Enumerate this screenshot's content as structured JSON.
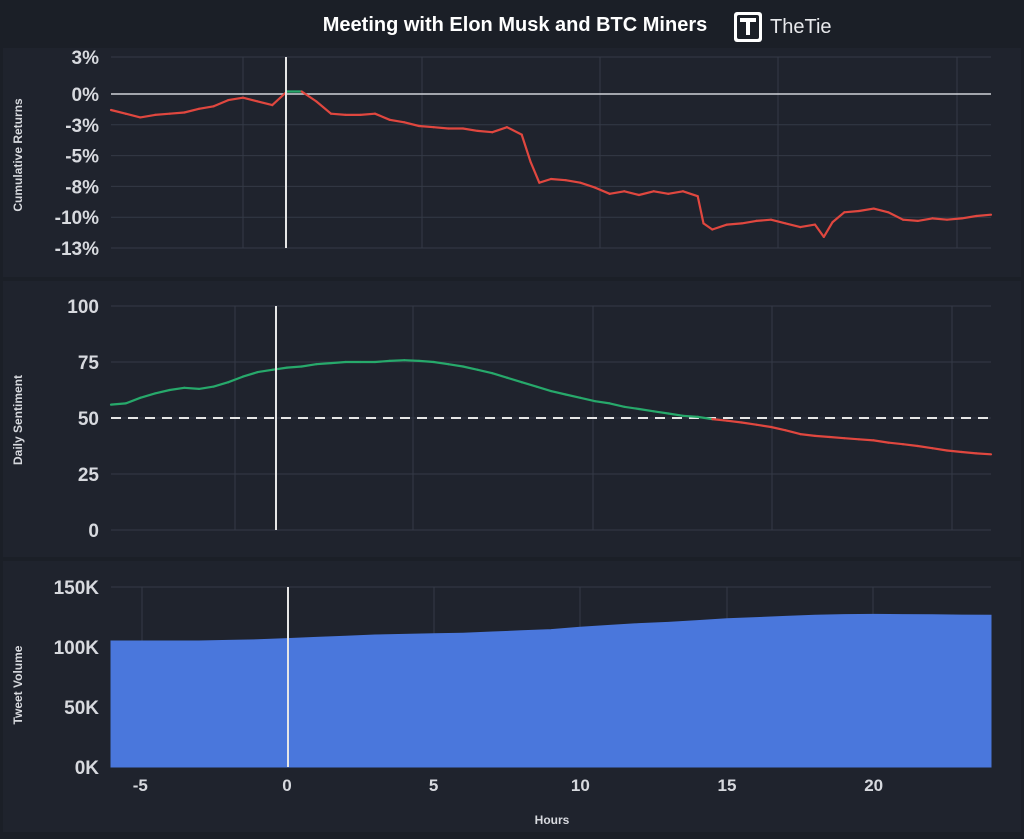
{
  "header": {
    "title": "Meeting with Elon Musk and BTC Miners",
    "brand": "TheTie"
  },
  "colors": {
    "background": "#1b1f27",
    "panel": "#1f232d",
    "grid": "#343a46",
    "text": "#d7d9de",
    "green": "#27a96b",
    "red": "#e0473f",
    "blue": "#4a77dc",
    "white": "#e6e6e6"
  },
  "chart_data": [
    {
      "type": "line",
      "ylabel": "Cumulative Returns",
      "ylim": [
        -12.5,
        3
      ],
      "xlim": [
        -6,
        24
      ],
      "yticks": [
        3,
        0,
        -2.5,
        -5,
        -7.5,
        -10,
        -12.5
      ],
      "ytick_labels": [
        "3%",
        "0%",
        "-3%",
        "-5%",
        "-8%",
        "-10%",
        "-13%"
      ],
      "event_x": 0,
      "positive_color": "#27a96b",
      "negative_color": "#e0473f",
      "series": [
        {
          "x": [
            -6,
            -5.5,
            -5,
            -4.5,
            -4,
            -3.5,
            -3,
            -2.5,
            -2,
            -1.5,
            -1,
            -0.5,
            0,
            0.5,
            1,
            1.5,
            2,
            2.5,
            3,
            3.5,
            4,
            4.5,
            5,
            5.5,
            6,
            6.5,
            7,
            7.5,
            8,
            8.3,
            8.6,
            9,
            9.5,
            10,
            10.5,
            11,
            11.5,
            12,
            12.5,
            13,
            13.5,
            14,
            14.2,
            14.5,
            15,
            15.5,
            16,
            16.5,
            17,
            17.5,
            18,
            18.3,
            18.6,
            19,
            19.5,
            20,
            20.5,
            21,
            21.5,
            22,
            22.5,
            23,
            23.5,
            24
          ],
          "y": [
            -1.3,
            -1.6,
            -1.9,
            -1.7,
            -1.6,
            -1.5,
            -1.2,
            -1.0,
            -0.5,
            -0.3,
            -0.6,
            -0.9,
            0.2,
            0.2,
            -0.6,
            -1.6,
            -1.7,
            -1.7,
            -1.6,
            -2.1,
            -2.3,
            -2.6,
            -2.7,
            -2.8,
            -2.8,
            -3.0,
            -3.1,
            -2.7,
            -3.3,
            -5.5,
            -7.2,
            -6.9,
            -7.0,
            -7.2,
            -7.6,
            -8.1,
            -7.9,
            -8.2,
            -7.9,
            -8.1,
            -7.9,
            -8.3,
            -10.5,
            -11.0,
            -10.6,
            -10.5,
            -10.3,
            -10.2,
            -10.5,
            -10.8,
            -10.6,
            -11.6,
            -10.4,
            -9.6,
            -9.5,
            -9.3,
            -9.6,
            -10.2,
            -10.3,
            -10.1,
            -10.2,
            -10.1,
            -9.9,
            -9.8
          ]
        }
      ]
    },
    {
      "type": "line",
      "ylabel": "Daily Sentiment",
      "ylim": [
        0,
        100
      ],
      "xlim": [
        -6,
        24
      ],
      "yticks": [
        100,
        75,
        50,
        25,
        0
      ],
      "ytick_labels": [
        "100",
        "75",
        "50",
        "25",
        "0"
      ],
      "threshold": 50,
      "event_x": 0,
      "positive_color": "#27a96b",
      "negative_color": "#e0473f",
      "series": [
        {
          "x": [
            -6,
            -5.5,
            -5,
            -4.5,
            -4,
            -3.5,
            -3,
            -2.5,
            -2,
            -1.5,
            -1,
            -0.5,
            0,
            0.5,
            1,
            1.5,
            2,
            2.5,
            3,
            3.5,
            4,
            4.5,
            5,
            5.5,
            6,
            6.5,
            7,
            7.5,
            8,
            8.5,
            9,
            9.5,
            10,
            10.5,
            11,
            11.5,
            12,
            12.5,
            13,
            13.5,
            14,
            14.5,
            15,
            15.5,
            16,
            16.5,
            17,
            17.5,
            18,
            18.5,
            19,
            19.5,
            20,
            20.5,
            21,
            21.5,
            22,
            22.5,
            23,
            23.5,
            24
          ],
          "y": [
            56,
            56.5,
            59,
            61,
            62.5,
            63.5,
            63,
            64,
            66,
            68.5,
            70.5,
            71.5,
            72.5,
            73,
            74,
            74.5,
            75,
            75,
            75,
            75.5,
            75.8,
            75.5,
            75,
            74,
            73,
            71.5,
            70,
            68,
            66,
            64,
            62,
            60.5,
            59,
            57.5,
            56.5,
            55,
            54,
            53,
            52,
            51,
            50.5,
            49.5,
            48.8,
            48,
            47,
            46,
            44.5,
            42.8,
            42,
            41.5,
            41,
            40.5,
            40,
            39,
            38.3,
            37.5,
            36.5,
            35.5,
            34.8,
            34.2,
            33.8
          ]
        }
      ]
    },
    {
      "type": "area",
      "ylabel": "Tweet Volume",
      "xlabel": "Hours",
      "ylim": [
        0,
        150000
      ],
      "xlim": [
        -6,
        24
      ],
      "yticks": [
        150000,
        100000,
        50000,
        0
      ],
      "ytick_labels": [
        "150K",
        "100K",
        "50K",
        "0K"
      ],
      "xticks": [
        -5,
        0,
        5,
        10,
        15,
        20
      ],
      "xtick_labels": [
        "-5",
        "0",
        "5",
        "10",
        "15",
        "20"
      ],
      "event_x": 0,
      "color": "#4a77dc",
      "series": [
        {
          "x": [
            -6,
            -5,
            -4,
            -3,
            -2,
            -1,
            0,
            1,
            2,
            3,
            4,
            5,
            6,
            7,
            8,
            9,
            10,
            11,
            12,
            13,
            14,
            15,
            16,
            17,
            18,
            19,
            20,
            21,
            22,
            23,
            24
          ],
          "y": [
            105000,
            105000,
            105000,
            105000,
            105500,
            106000,
            107000,
            108000,
            109000,
            110000,
            110500,
            111000,
            111500,
            112500,
            113500,
            114500,
            116500,
            118000,
            119500,
            120500,
            122000,
            123500,
            124500,
            125500,
            126500,
            127000,
            127200,
            127000,
            126800,
            126600,
            126500
          ]
        }
      ]
    }
  ]
}
